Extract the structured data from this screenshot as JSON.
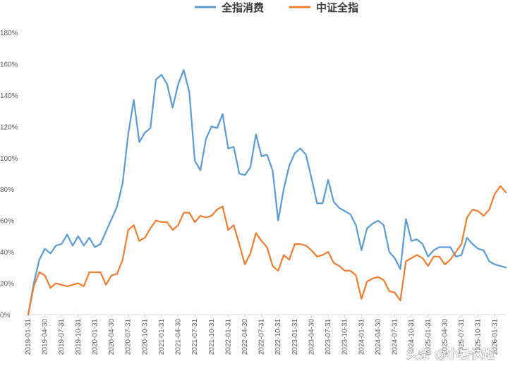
{
  "watermark": "头条 @小暑快跑",
  "chart_data": {
    "type": "line",
    "title": "",
    "xlabel": "",
    "ylabel": "",
    "ylim": [
      0,
      180
    ],
    "y_unit": "%",
    "y_ticks": [
      "0%",
      "20%",
      "40%",
      "60%",
      "80%",
      "100%",
      "120%",
      "140%",
      "160%",
      "180%"
    ],
    "grid": false,
    "legend_position": "top-center",
    "x_ticks": [
      "2019-01-31",
      "2019-04-30",
      "2019-07-31",
      "2019-10-31",
      "2020-01-31",
      "2020-04-30",
      "2020-07-31",
      "2020-10-31",
      "2021-01-31",
      "2021-04-30",
      "2021-07-31",
      "2021-10-31",
      "2022-01-31",
      "2022-04-30",
      "2022-07-31",
      "2022-10-31",
      "2023-01-31",
      "2023-04-30",
      "2023-07-31",
      "2023-10-31",
      "2024-01-31",
      "2024-04-30",
      "2024-07-31",
      "2024-10-31",
      "2025-01-31",
      "2025-04-30",
      "2025-07-31",
      "2025-10-31",
      "2026-01-31"
    ],
    "series": [
      {
        "name": "全指消费",
        "color": "#5b9bd5",
        "values": [
          0,
          20,
          35,
          42,
          39,
          44,
          45,
          51,
          44,
          50,
          44,
          49,
          43,
          45,
          53,
          61,
          69,
          84,
          115,
          137,
          110,
          116,
          119,
          150,
          153,
          147,
          132,
          147,
          156,
          142,
          98,
          92,
          112,
          120,
          119,
          128,
          106,
          107,
          90,
          89,
          94,
          115,
          101,
          102,
          92,
          60,
          80,
          95,
          103,
          106,
          102,
          87,
          71,
          71,
          86,
          72,
          68,
          66,
          64,
          57,
          41,
          55,
          58,
          60,
          57,
          40,
          36,
          29,
          61,
          47,
          48,
          45,
          37,
          41,
          43,
          43,
          43,
          37,
          38,
          49,
          45,
          42,
          41,
          34,
          32,
          31,
          30
        ]
      },
      {
        "name": "中证全指",
        "color": "#ed7d31",
        "values": [
          0,
          18,
          27,
          25,
          17,
          20,
          19,
          18,
          19,
          20,
          18,
          27,
          27,
          27,
          19,
          25,
          26,
          35,
          54,
          57,
          47,
          49,
          55,
          60,
          59,
          59,
          54,
          57,
          65,
          65,
          59,
          63,
          62,
          63,
          67,
          69,
          54,
          57,
          45,
          32,
          39,
          52,
          47,
          43,
          31,
          28,
          38,
          35,
          45,
          45,
          44,
          41,
          37,
          38,
          40,
          33,
          31,
          28,
          28,
          25,
          10,
          21,
          23,
          24,
          22,
          15,
          14,
          9,
          34,
          36,
          38,
          36,
          31,
          37,
          37,
          32,
          35,
          40,
          45,
          62,
          67,
          66,
          63,
          67,
          77,
          82,
          78
        ]
      }
    ]
  }
}
